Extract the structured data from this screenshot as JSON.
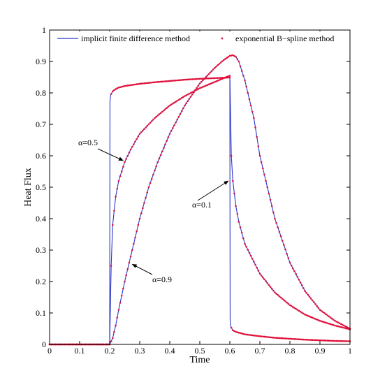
{
  "chart_data": {
    "type": "line",
    "xlabel": "Time",
    "ylabel": "Heat Flux",
    "xlim": [
      0,
      1
    ],
    "ylim": [
      0,
      1
    ],
    "xticks": [
      "0",
      "0.1",
      "0.2",
      "0.3",
      "0.4",
      "0.5",
      "0.6",
      "0.7",
      "0.8",
      "0.9",
      "1"
    ],
    "yticks": [
      "0",
      "0.1",
      "0.2",
      "0.3",
      "0.4",
      "0.5",
      "0.6",
      "0.7",
      "0.8",
      "0.9",
      "1"
    ],
    "grid": false,
    "legend_position": "top",
    "legend": [
      {
        "name": "implicit finite difference method",
        "style": "line",
        "color": "#2b36c8"
      },
      {
        "name": "exponential B−spline method",
        "style": "dots",
        "color": "#e0103a"
      }
    ],
    "series": [
      {
        "label": "α=0.1",
        "x": [
          0,
          0.195,
          0.2,
          0.201,
          0.202,
          0.204,
          0.207,
          0.21,
          0.22,
          0.23,
          0.25,
          0.3,
          0.35,
          0.4,
          0.45,
          0.5,
          0.55,
          0.6,
          0.601,
          0.602,
          0.604,
          0.607,
          0.61,
          0.62,
          0.65,
          0.7,
          0.75,
          0.8,
          0.85,
          0.9,
          0.95,
          1
        ],
        "y": [
          0,
          0,
          0,
          0.77,
          0.785,
          0.795,
          0.8,
          0.805,
          0.812,
          0.817,
          0.822,
          0.829,
          0.834,
          0.838,
          0.842,
          0.845,
          0.847,
          0.849,
          0.08,
          0.065,
          0.055,
          0.05,
          0.045,
          0.04,
          0.032,
          0.026,
          0.021,
          0.018,
          0.015,
          0.013,
          0.011,
          0.01
        ]
      },
      {
        "label": "α=0.5",
        "x": [
          0,
          0.195,
          0.2,
          0.205,
          0.21,
          0.22,
          0.23,
          0.24,
          0.25,
          0.27,
          0.3,
          0.35,
          0.4,
          0.45,
          0.5,
          0.55,
          0.6,
          0.605,
          0.61,
          0.62,
          0.63,
          0.65,
          0.7,
          0.75,
          0.8,
          0.85,
          0.9,
          0.95,
          1
        ],
        "y": [
          0,
          0,
          0,
          0.25,
          0.38,
          0.47,
          0.52,
          0.55,
          0.58,
          0.62,
          0.67,
          0.72,
          0.76,
          0.79,
          0.815,
          0.835,
          0.855,
          0.6,
          0.52,
          0.44,
          0.39,
          0.32,
          0.225,
          0.165,
          0.125,
          0.095,
          0.075,
          0.06,
          0.048
        ]
      },
      {
        "label": "α=0.9",
        "x": [
          0,
          0.2,
          0.21,
          0.22,
          0.23,
          0.25,
          0.27,
          0.3,
          0.33,
          0.36,
          0.4,
          0.45,
          0.5,
          0.55,
          0.58,
          0.6,
          0.61,
          0.62,
          0.63,
          0.65,
          0.68,
          0.7,
          0.75,
          0.8,
          0.85,
          0.9,
          0.95,
          1
        ],
        "y": [
          0,
          0,
          0.02,
          0.06,
          0.11,
          0.2,
          0.28,
          0.4,
          0.5,
          0.58,
          0.67,
          0.76,
          0.83,
          0.88,
          0.905,
          0.918,
          0.92,
          0.915,
          0.9,
          0.84,
          0.72,
          0.6,
          0.4,
          0.26,
          0.17,
          0.11,
          0.075,
          0.05
        ]
      }
    ],
    "annotations": [
      {
        "text": "α=0.5",
        "target_x": 0.245,
        "target_y": 0.585
      },
      {
        "text": "α=0.9",
        "target_x": 0.275,
        "target_y": 0.255
      },
      {
        "text": "α=0.1",
        "target_x": 0.595,
        "target_y": 0.52
      }
    ]
  }
}
